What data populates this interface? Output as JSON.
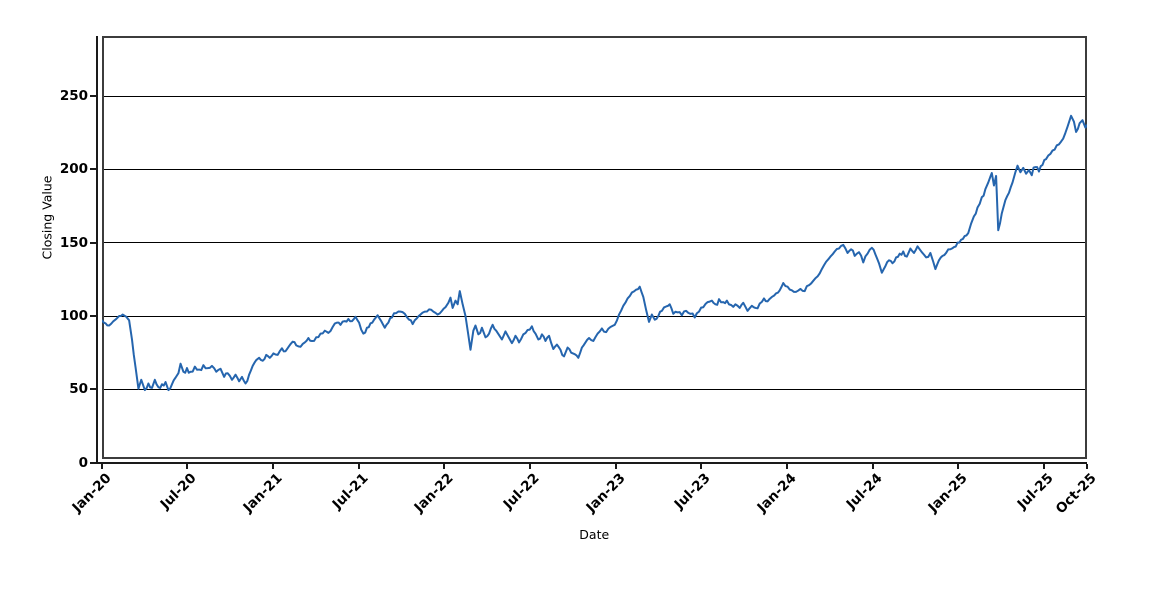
{
  "chart_data": {
    "type": "line",
    "title": "",
    "xlabel": "Date",
    "ylabel": "Closing Value",
    "x_unit": "months since Jan-2020",
    "x_range": [
      0,
      69
    ],
    "y_range_visible": [
      0,
      292
    ],
    "grid": "horizontal only, black, at y=50,100,150,200,250",
    "legend": "none",
    "y_ticks": [
      0,
      50,
      100,
      150,
      200,
      250
    ],
    "x_ticks": [
      {
        "m": 0,
        "label": "Jan-20"
      },
      {
        "m": 6,
        "label": "Jul-20"
      },
      {
        "m": 12,
        "label": "Jan-21"
      },
      {
        "m": 18,
        "label": "Jul-21"
      },
      {
        "m": 24,
        "label": "Jan-22"
      },
      {
        "m": 30,
        "label": "Jul-22"
      },
      {
        "m": 36,
        "label": "Jan-23"
      },
      {
        "m": 42,
        "label": "Jul-23"
      },
      {
        "m": 48,
        "label": "Jan-24"
      },
      {
        "m": 54,
        "label": "Jul-24"
      },
      {
        "m": 60,
        "label": "Jan-25"
      },
      {
        "m": 66,
        "label": "Jul-25"
      },
      {
        "m": 69,
        "label": "Oct-25"
      }
    ],
    "series": [
      {
        "name": "Closing Value",
        "color": "#2565ae",
        "points_note": "anchor points [month_offset_from_Jan2020, value] read off the plot; daily jitter rendered around them",
        "points": [
          [
            0,
            97
          ],
          [
            0.25,
            95
          ],
          [
            0.5,
            93.5
          ],
          [
            0.8,
            96.5
          ],
          [
            1.0,
            98
          ],
          [
            1.2,
            100
          ],
          [
            1.45,
            101
          ],
          [
            1.7,
            99.5
          ],
          [
            1.9,
            97
          ],
          [
            2.1,
            84
          ],
          [
            2.35,
            65
          ],
          [
            2.55,
            50.5
          ],
          [
            2.75,
            56.5
          ],
          [
            3.0,
            49.5
          ],
          [
            3.25,
            54
          ],
          [
            3.5,
            51
          ],
          [
            3.7,
            56.5
          ],
          [
            3.95,
            51.5
          ],
          [
            4.2,
            53.5
          ],
          [
            4.45,
            55
          ],
          [
            4.65,
            49.5
          ],
          [
            4.9,
            53.5
          ],
          [
            5.15,
            58
          ],
          [
            5.35,
            61
          ],
          [
            5.5,
            67.5
          ],
          [
            5.7,
            62
          ],
          [
            5.95,
            64.5
          ],
          [
            6.2,
            62
          ],
          [
            6.5,
            65.5
          ],
          [
            6.8,
            63.5
          ],
          [
            7.1,
            66.5
          ],
          [
            7.4,
            64.5
          ],
          [
            7.7,
            66
          ],
          [
            8.0,
            62
          ],
          [
            8.3,
            64
          ],
          [
            8.55,
            58.5
          ],
          [
            8.8,
            61
          ],
          [
            9.1,
            56.5
          ],
          [
            9.35,
            60
          ],
          [
            9.6,
            55.5
          ],
          [
            9.8,
            58.5
          ],
          [
            10.05,
            54
          ],
          [
            10.3,
            60
          ],
          [
            10.55,
            66
          ],
          [
            10.8,
            70
          ],
          [
            11.0,
            71.5
          ],
          [
            11.25,
            69.5
          ],
          [
            11.5,
            73.5
          ],
          [
            11.75,
            71.5
          ],
          [
            12.0,
            74.5
          ],
          [
            12.3,
            73.5
          ],
          [
            12.6,
            78
          ],
          [
            12.85,
            76
          ],
          [
            13.1,
            79.5
          ],
          [
            13.35,
            82.5
          ],
          [
            13.6,
            80
          ],
          [
            13.9,
            79
          ],
          [
            14.2,
            82
          ],
          [
            14.45,
            85
          ],
          [
            14.7,
            83
          ],
          [
            15.0,
            85.5
          ],
          [
            15.3,
            88
          ],
          [
            15.6,
            90
          ],
          [
            15.85,
            88.5
          ],
          [
            16.15,
            92.5
          ],
          [
            16.45,
            95.5
          ],
          [
            16.7,
            94
          ],
          [
            17.0,
            96.5
          ],
          [
            17.25,
            98
          ],
          [
            17.5,
            96.5
          ],
          [
            17.75,
            99.5
          ],
          [
            18.0,
            95.5
          ],
          [
            18.3,
            88
          ],
          [
            18.55,
            92
          ],
          [
            18.8,
            95
          ],
          [
            19.05,
            97.5
          ],
          [
            19.3,
            100.5
          ],
          [
            19.55,
            96.5
          ],
          [
            19.8,
            92
          ],
          [
            20.05,
            95.5
          ],
          [
            20.3,
            99
          ],
          [
            20.6,
            102
          ],
          [
            20.9,
            103
          ],
          [
            21.2,
            101.5
          ],
          [
            21.5,
            97.5
          ],
          [
            21.75,
            94.5
          ],
          [
            22.05,
            98.5
          ],
          [
            22.3,
            101
          ],
          [
            22.6,
            103
          ],
          [
            22.9,
            104.5
          ],
          [
            23.2,
            103
          ],
          [
            23.5,
            101
          ],
          [
            23.8,
            103.5
          ],
          [
            24.05,
            106
          ],
          [
            24.25,
            109
          ],
          [
            24.4,
            112.5
          ],
          [
            24.55,
            105.5
          ],
          [
            24.75,
            110.5
          ],
          [
            24.9,
            108
          ],
          [
            25.05,
            117
          ],
          [
            25.25,
            108
          ],
          [
            25.45,
            100
          ],
          [
            25.65,
            87
          ],
          [
            25.8,
            77
          ],
          [
            26.0,
            90
          ],
          [
            26.15,
            93.5
          ],
          [
            26.35,
            87.5
          ],
          [
            26.6,
            92
          ],
          [
            26.85,
            85.5
          ],
          [
            27.1,
            88
          ],
          [
            27.35,
            94
          ],
          [
            27.6,
            90
          ],
          [
            27.8,
            87
          ],
          [
            28.0,
            84
          ],
          [
            28.25,
            89.5
          ],
          [
            28.5,
            85
          ],
          [
            28.7,
            81.5
          ],
          [
            28.95,
            86.5
          ],
          [
            29.2,
            82
          ],
          [
            29.5,
            87.5
          ],
          [
            29.8,
            90.5
          ],
          [
            30.1,
            93
          ],
          [
            30.35,
            88
          ],
          [
            30.55,
            84
          ],
          [
            30.8,
            87.5
          ],
          [
            31.05,
            83
          ],
          [
            31.3,
            86.5
          ],
          [
            31.6,
            77.5
          ],
          [
            31.85,
            80.5
          ],
          [
            32.1,
            77
          ],
          [
            32.35,
            72.5
          ],
          [
            32.6,
            78.5
          ],
          [
            32.85,
            75
          ],
          [
            33.1,
            74
          ],
          [
            33.35,
            71.5
          ],
          [
            33.6,
            78.5
          ],
          [
            33.85,
            82
          ],
          [
            34.1,
            85
          ],
          [
            34.4,
            83
          ],
          [
            34.7,
            88
          ],
          [
            35.0,
            91.5
          ],
          [
            35.3,
            89
          ],
          [
            35.6,
            92.5
          ],
          [
            35.9,
            94
          ],
          [
            36.2,
            101
          ],
          [
            36.5,
            107
          ],
          [
            36.8,
            112
          ],
          [
            37.1,
            116
          ],
          [
            37.4,
            118
          ],
          [
            37.65,
            120
          ],
          [
            37.9,
            113
          ],
          [
            38.1,
            104
          ],
          [
            38.3,
            96
          ],
          [
            38.5,
            101
          ],
          [
            38.7,
            97.5
          ],
          [
            38.95,
            100
          ],
          [
            39.2,
            103.5
          ],
          [
            39.5,
            106.5
          ],
          [
            39.75,
            108
          ],
          [
            40.0,
            101.5
          ],
          [
            40.3,
            102.5
          ],
          [
            40.6,
            100.5
          ],
          [
            40.9,
            103.5
          ],
          [
            41.2,
            101.5
          ],
          [
            41.5,
            99
          ],
          [
            41.8,
            103
          ],
          [
            42.1,
            106
          ],
          [
            42.4,
            109.5
          ],
          [
            42.7,
            110.5
          ],
          [
            42.95,
            108
          ],
          [
            43.2,
            111.5
          ],
          [
            43.5,
            109.5
          ],
          [
            43.75,
            110.5
          ],
          [
            44.05,
            107.5
          ],
          [
            44.35,
            108
          ],
          [
            44.65,
            105.5
          ],
          [
            44.9,
            109
          ],
          [
            45.2,
            103.5
          ],
          [
            45.5,
            107
          ],
          [
            45.75,
            105.5
          ],
          [
            46.05,
            108.5
          ],
          [
            46.35,
            112
          ],
          [
            46.6,
            110
          ],
          [
            46.9,
            113
          ],
          [
            47.2,
            115.5
          ],
          [
            47.45,
            117.5
          ],
          [
            47.7,
            122.5
          ],
          [
            48.0,
            120
          ],
          [
            48.3,
            117.5
          ],
          [
            48.6,
            116.5
          ],
          [
            48.9,
            118.5
          ],
          [
            49.2,
            117
          ],
          [
            49.5,
            121
          ],
          [
            49.8,
            124
          ],
          [
            50.1,
            127
          ],
          [
            50.4,
            132
          ],
          [
            50.7,
            137
          ],
          [
            51.0,
            140.5
          ],
          [
            51.3,
            144
          ],
          [
            51.6,
            146
          ],
          [
            51.9,
            148.5
          ],
          [
            52.2,
            143
          ],
          [
            52.45,
            145.5
          ],
          [
            52.7,
            141
          ],
          [
            53.0,
            143.5
          ],
          [
            53.3,
            136.5
          ],
          [
            53.6,
            142.5
          ],
          [
            53.9,
            146.5
          ],
          [
            54.15,
            142
          ],
          [
            54.4,
            136
          ],
          [
            54.6,
            129.5
          ],
          [
            54.85,
            134
          ],
          [
            55.1,
            138
          ],
          [
            55.35,
            136
          ],
          [
            55.6,
            140
          ],
          [
            55.85,
            142.5
          ],
          [
            56.1,
            144
          ],
          [
            56.35,
            140.5
          ],
          [
            56.6,
            146
          ],
          [
            56.85,
            143
          ],
          [
            57.1,
            147.5
          ],
          [
            57.4,
            143.5
          ],
          [
            57.7,
            140
          ],
          [
            58.0,
            143
          ],
          [
            58.2,
            137
          ],
          [
            58.35,
            132
          ],
          [
            58.6,
            138
          ],
          [
            58.85,
            141
          ],
          [
            59.1,
            143
          ],
          [
            59.4,
            145.5
          ],
          [
            59.65,
            147
          ],
          [
            59.9,
            150
          ],
          [
            60.15,
            152
          ],
          [
            60.4,
            154.5
          ],
          [
            60.65,
            156.5
          ],
          [
            60.85,
            163
          ],
          [
            61.05,
            168
          ],
          [
            61.3,
            174
          ],
          [
            61.6,
            181
          ],
          [
            61.85,
            186.5
          ],
          [
            62.05,
            191
          ],
          [
            62.2,
            195
          ],
          [
            62.3,
            197.5
          ],
          [
            62.45,
            189
          ],
          [
            62.6,
            195.5
          ],
          [
            62.75,
            158.5
          ],
          [
            63.0,
            170
          ],
          [
            63.25,
            179
          ],
          [
            63.5,
            184
          ],
          [
            63.75,
            191
          ],
          [
            63.95,
            198
          ],
          [
            64.1,
            202.5
          ],
          [
            64.3,
            198
          ],
          [
            64.5,
            201
          ],
          [
            64.7,
            197
          ],
          [
            64.9,
            199.5
          ],
          [
            65.1,
            196
          ],
          [
            65.35,
            201.5
          ],
          [
            65.6,
            198.5
          ],
          [
            65.85,
            203
          ],
          [
            66.1,
            207
          ],
          [
            66.4,
            210.5
          ],
          [
            66.7,
            213.5
          ],
          [
            67.0,
            217
          ],
          [
            67.3,
            221
          ],
          [
            67.6,
            229
          ],
          [
            67.85,
            236.5
          ],
          [
            68.05,
            232.5
          ],
          [
            68.2,
            225.5
          ],
          [
            68.45,
            231.5
          ],
          [
            68.65,
            233.5
          ],
          [
            68.85,
            228.5
          ],
          [
            69.0,
            230.5
          ]
        ]
      }
    ]
  },
  "axes": {
    "y_title": "Closing Value",
    "x_title": "Date"
  },
  "colors": {
    "line": "#2565ae",
    "grid": "#000000",
    "border": "#3c3c3c",
    "axis": "#1a1a1a",
    "text": "#000000",
    "background": "#ffffff"
  }
}
